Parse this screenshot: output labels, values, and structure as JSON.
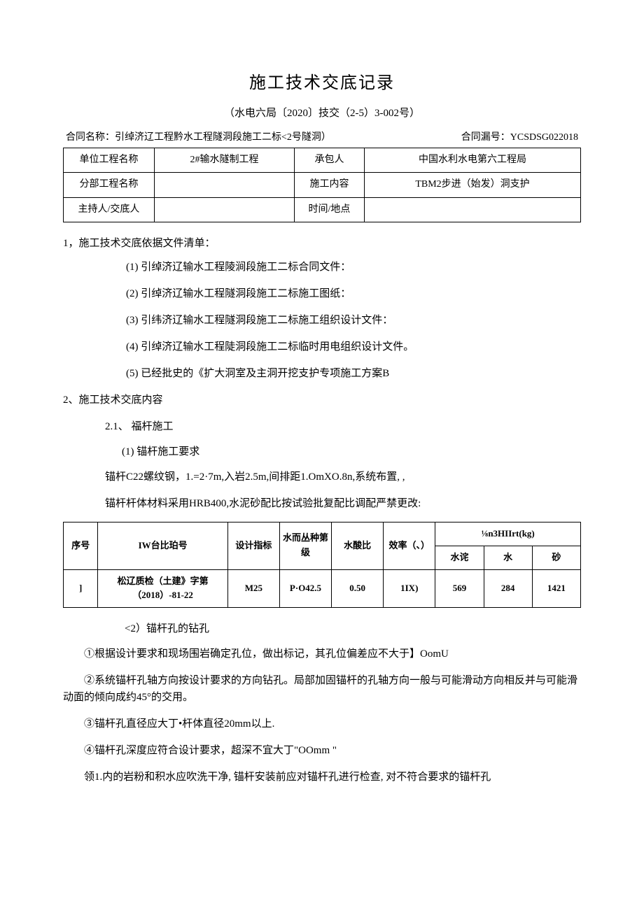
{
  "doc": {
    "title": "施工技术交底记录",
    "subtitle": "（水电六局〔2020〕技交（2-5）3-002号）",
    "contract_left": "合同名称：引绰济辽工程黔水工程隧洞段施工二标<2号隧洞）",
    "contract_right": "合同漏号：YCSDSG022018"
  },
  "info_table": {
    "r1c1": "单位工程名称",
    "r1c2": "2#输水隧制工程",
    "r1c3": "承包人",
    "r1c4": "中国水利水电第六工程局",
    "r2c1": "分部工程名称",
    "r2c2": "",
    "r2c3": "施工内容",
    "r2c4": "TBM2步进（始发）洞支护",
    "r3c1": "主持人/交底人",
    "r3c2": "",
    "r3c3": "时间/地点",
    "r3c4": ""
  },
  "section1": {
    "lead": "1，施工技术交底依据文件清单：",
    "items": [
      "(1) 引绰济辽输水工程陵涧段施工二标合同文件：",
      "(2) 引绰济辽输水工程隧洞段施工二标施工图纸：",
      "(3) 引纬济辽输水工程隧洞段施工二标施工组织设计文件：",
      "(4) 引绰济辽输水工程陡洞段施工二标临时用电组织设计文件。",
      "(5) 已经批史的《扩大洞室及主洞开挖支护专项施工方案B"
    ]
  },
  "section2": {
    "head": "2、施工技术交底内容",
    "s21": "2.1、  福杆施工",
    "s21_sub": "(1) 锚杆施工要求",
    "para_a": "锚杆C22螺纹钢，1.=2·7m,入岩2.5m,间排距1.OmXO.8n,系统布置, ,",
    "para_b": "锚杆杆体材料采用HRB400,水泥砂配比按试验批复配比调配严禁更改:"
  },
  "mix_table": {
    "head": {
      "序号": "序号",
      "IW台比珀号": "IW台比珀号",
      "设计指标": "设计指标",
      "水而丛种第级": "水而丛种第级",
      "水酸比": "水酸比",
      "效率": "效率（、）",
      "group": "⅛n3HIIrt(kg)",
      "水诧": "水诧",
      "水": "水",
      "砂": "砂"
    },
    "row": {
      "序号": "]",
      "label": "松辽质检（土建》字第（2018）-81-22",
      "设计指标": "M25",
      "水而丛种第级": "P·O42.5",
      "水酸比": "0.50",
      "效率": "1IX)",
      "水诧": "569",
      "水": "284",
      "砂": "1421"
    }
  },
  "after_table": {
    "sub2": "<2）锚杆孔的钻孔",
    "p1": "①根据设计要求和现场围岩确定孔位，做出标记，其孔位偏差应不大于】OomU",
    "p2": "②系统锚杆孔轴方向按设计要求的方向钻孔。局部加固锚杆的孔轴方向一般与可能滑动方向相反并与可能滑动面的倾向成约45°的交用。",
    "p3": "③锚杆孔直径应大丁•杆体直径20mm以上.",
    "p4": "④锚杆孔深度应符合设计要求，超深不宜大丁\"OOmm \"",
    "p5": "领1.内的岩粉和积水应吹洗干净, 锚杆安装前应对锚杆孔进行检查, 对不符合要求的锚杆孔"
  },
  "style": {
    "text_color": "#000000",
    "bg_color": "#ffffff",
    "border_color": "#000000",
    "title_fontsize": 24,
    "body_fontsize": 15,
    "table_fontsize": 13
  }
}
